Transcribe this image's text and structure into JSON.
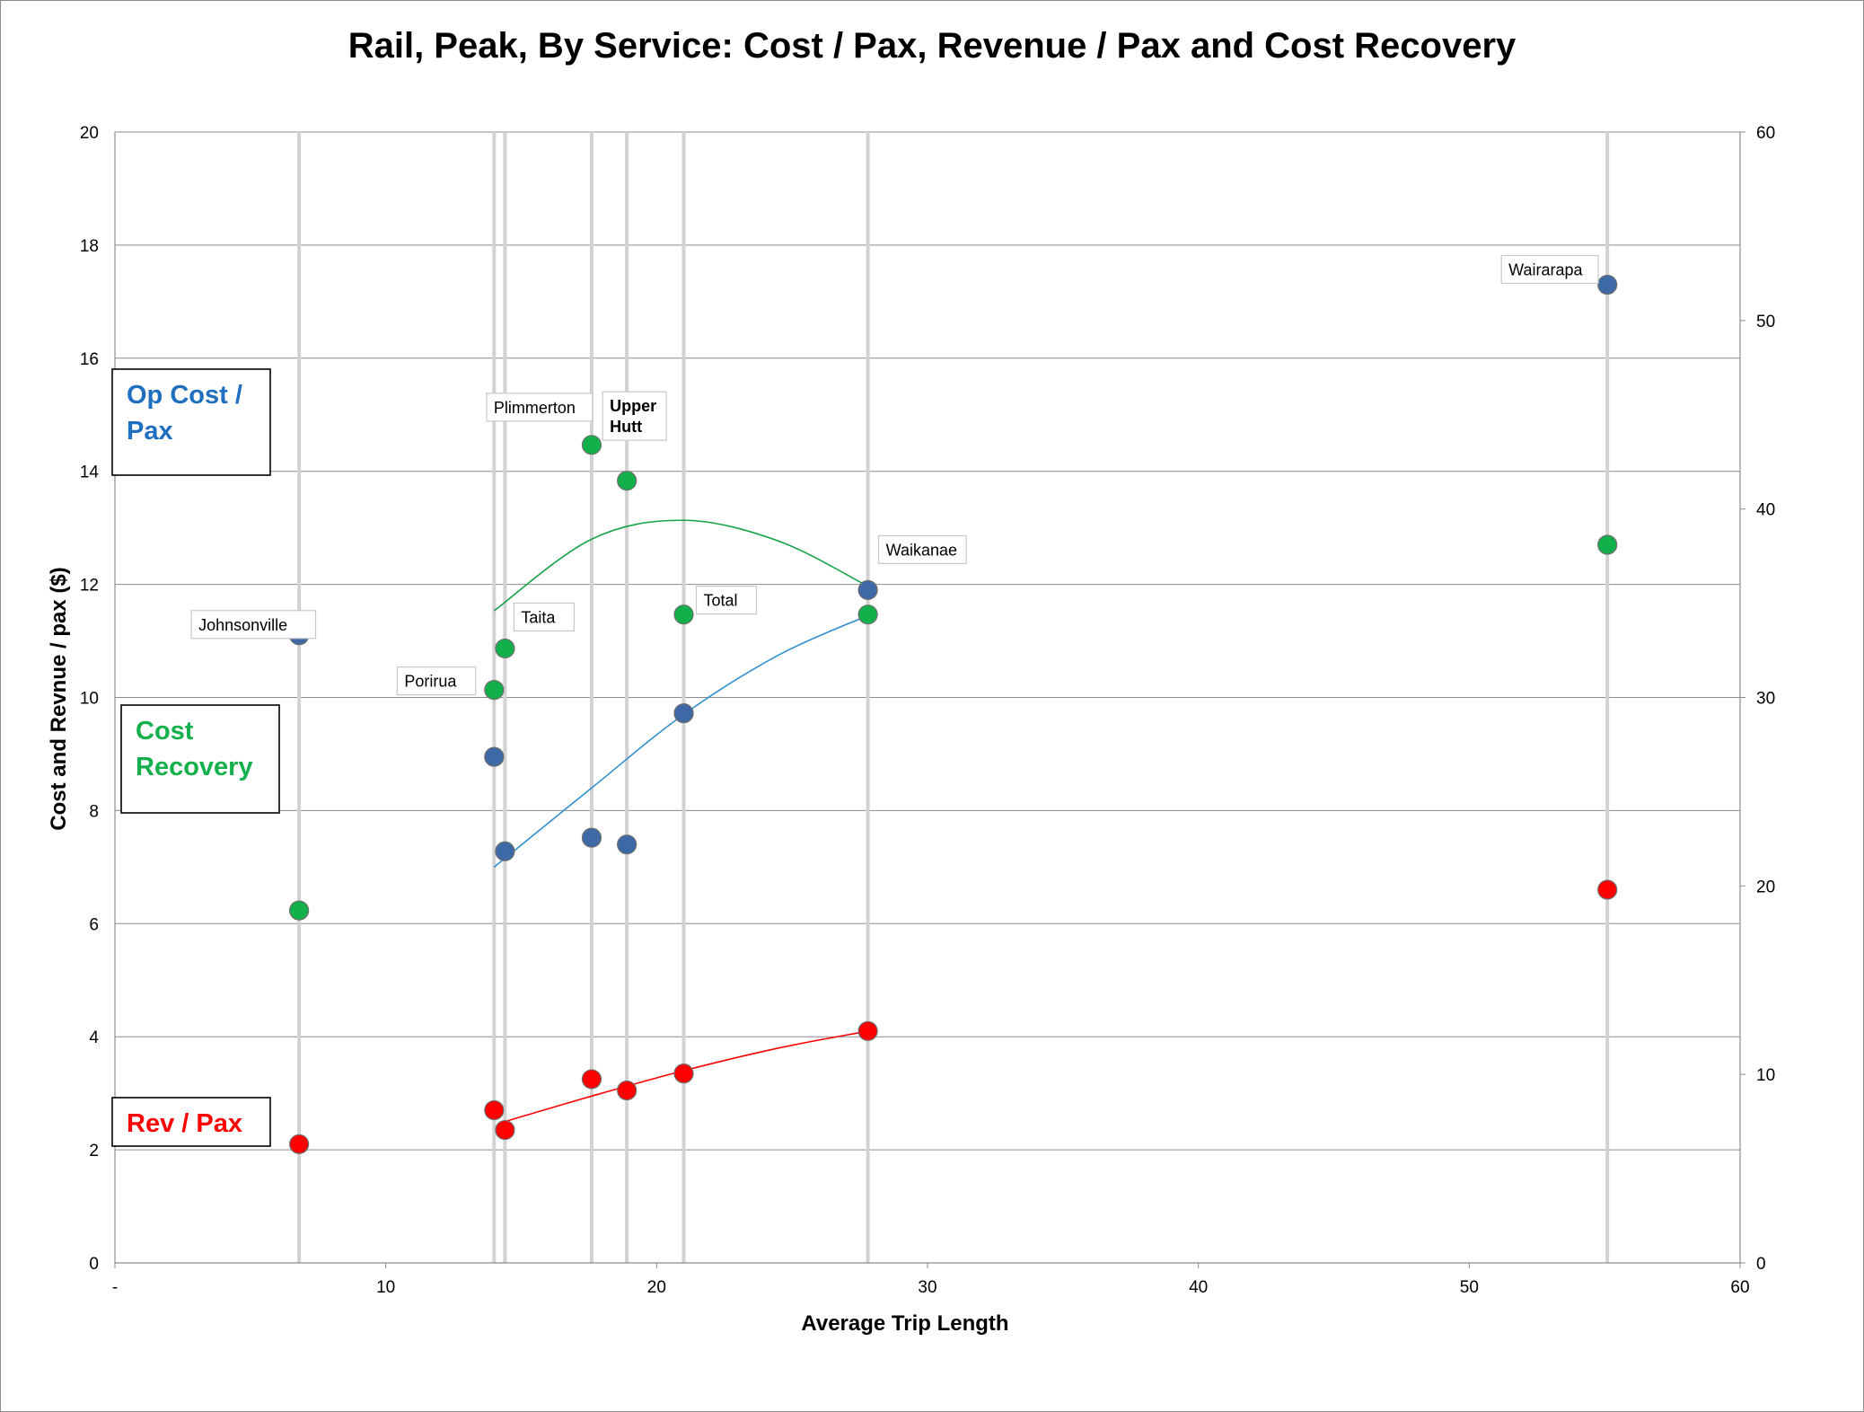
{
  "chart_data": {
    "type": "scatter",
    "title": "Rail, Peak, By Service: Cost / Pax, Revenue / Pax and Cost Recovery",
    "xlabel": "Average Trip Length",
    "ylabel": "Cost and Revnue / pax ($)",
    "xlim": [
      0,
      60
    ],
    "ylim": [
      0,
      20
    ],
    "y2lim": [
      0,
      60
    ],
    "x_ticks": [
      "-",
      "10",
      "20",
      "30",
      "40",
      "50",
      "60"
    ],
    "y_ticks": [
      "0",
      "2",
      "4",
      "6",
      "8",
      "10",
      "12",
      "14",
      "16",
      "18",
      "20"
    ],
    "y2_ticks": [
      "0",
      "10",
      "20",
      "30",
      "40",
      "50",
      "60"
    ],
    "grid": true,
    "colors": {
      "op_cost": "#3d6aa6",
      "cost_recovery": "#12b04a",
      "rev": "#ff0000",
      "op_cost_trend": "#2f8fcf",
      "cost_recovery_trend": "#16a34a",
      "rev_trend": "#ff0000",
      "grid": "#8c8c8c",
      "dropline": "#d2d2d2",
      "op_cost_legend": "#1f6fc0",
      "cost_recovery_legend": "#14b04c",
      "rev_legend": "#ff0000"
    },
    "legend": [
      {
        "name": "Op Cost / Pax",
        "lines": [
          "Op Cost /",
          "Pax"
        ],
        "color_key": "op_cost_legend",
        "position": "left-upper"
      },
      {
        "name": "Cost Recovery",
        "lines": [
          "Cost",
          "Recovery"
        ],
        "color_key": "cost_recovery_legend",
        "position": "left-middle"
      },
      {
        "name": "Rev / Pax",
        "lines": [
          "Rev / Pax"
        ],
        "color_key": "rev_legend",
        "position": "left-lower"
      }
    ],
    "services": [
      {
        "name": "Johnsonville",
        "x": 6.8,
        "op_cost": 11.1,
        "rev": 2.1,
        "cost_recovery": 18.7
      },
      {
        "name": "Porirua",
        "x": 14.0,
        "op_cost": 8.95,
        "rev": 2.7,
        "cost_recovery": 30.4
      },
      {
        "name": "Taita",
        "x": 14.4,
        "op_cost": 7.28,
        "rev": 2.35,
        "cost_recovery": 32.6
      },
      {
        "name": "Plimmerton",
        "x": 17.6,
        "op_cost": 7.52,
        "rev": 3.25,
        "cost_recovery": 43.4
      },
      {
        "name": "Upper Hutt",
        "x": 18.9,
        "op_cost": 7.4,
        "rev": 3.05,
        "cost_recovery": 41.5
      },
      {
        "name": "Total",
        "x": 21.0,
        "op_cost": 9.72,
        "rev": 3.35,
        "cost_recovery": 34.4
      },
      {
        "name": "Waikanae",
        "x": 27.8,
        "op_cost": 11.9,
        "rev": 4.1,
        "cost_recovery": 34.4
      },
      {
        "name": "Wairarapa",
        "x": 55.1,
        "op_cost": 17.3,
        "rev": 6.6,
        "cost_recovery": 38.1
      }
    ],
    "point_labels": [
      {
        "text": "Johnsonville",
        "series": "op_cost",
        "service": "Johnsonville"
      },
      {
        "text": "Porirua",
        "series": "cost_recovery",
        "service": "Porirua"
      },
      {
        "text": "Taita",
        "series": "cost_recovery",
        "service": "Taita"
      },
      {
        "text": "Plimmerton",
        "series": "cost_recovery",
        "service": "Plimmerton"
      },
      {
        "text": "Upper Hutt",
        "lines": [
          "Upper",
          "Hutt"
        ],
        "series": "cost_recovery",
        "service": "Upper Hutt",
        "bold": true
      },
      {
        "text": "Total",
        "series": "cost_recovery",
        "service": "Total"
      },
      {
        "text": "Waikanae",
        "series": "op_cost",
        "service": "Waikanae"
      },
      {
        "text": "Wairarapa",
        "series": "op_cost",
        "service": "Wairarapa"
      }
    ],
    "trendlines": [
      {
        "series": "op_cost",
        "type": "polynomial-2",
        "x_range": [
          14.0,
          27.8
        ],
        "points": [
          [
            14.0,
            7.0
          ],
          [
            17.6,
            8.4
          ],
          [
            21.0,
            9.7
          ],
          [
            24.5,
            10.75
          ],
          [
            27.8,
            11.45
          ]
        ]
      },
      {
        "series": "cost_recovery",
        "type": "polynomial-2",
        "x_range": [
          14.0,
          27.8
        ],
        "points": [
          [
            14.0,
            34.6
          ],
          [
            17.6,
            38.4
          ],
          [
            21.0,
            39.4
          ],
          [
            24.5,
            38.3
          ],
          [
            27.8,
            35.9
          ]
        ]
      },
      {
        "series": "rev",
        "type": "polynomial-2",
        "x_range": [
          14.4,
          27.8
        ],
        "points": [
          [
            14.4,
            2.5
          ],
          [
            17.6,
            2.95
          ],
          [
            21.0,
            3.4
          ],
          [
            24.5,
            3.8
          ],
          [
            27.8,
            4.1
          ]
        ]
      }
    ]
  }
}
